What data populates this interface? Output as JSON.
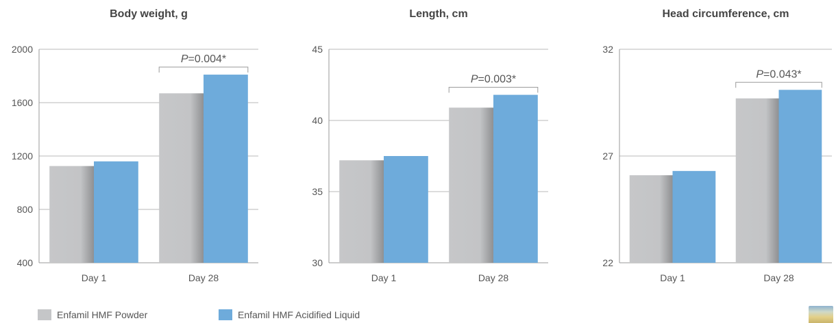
{
  "colors": {
    "powder": "#c5c6c8",
    "powder_shadow": "#8f9092",
    "liquid": "#6eabdb",
    "axis": "#9a9a9a",
    "grid": "#b8b8b8",
    "text": "#555555",
    "title": "#444444"
  },
  "legend": [
    {
      "label": "Enfamil HMF Powder",
      "color": "#c5c6c8"
    },
    {
      "label": "Enfamil HMF Acidified Liquid",
      "color": "#6eabdb"
    }
  ],
  "chart_data": [
    {
      "type": "bar",
      "title": "Body weight, g",
      "categories": [
        "Day 1",
        "Day 28"
      ],
      "ylim": [
        400,
        2000
      ],
      "yticks": [
        400,
        800,
        1200,
        1600,
        2000
      ],
      "grid": true,
      "series": [
        {
          "name": "Enfamil HMF Powder",
          "values": [
            1125,
            1670
          ]
        },
        {
          "name": "Enfamil HMF Acidified Liquid",
          "values": [
            1160,
            1810
          ]
        }
      ],
      "annotation": {
        "category": "Day 28",
        "p_label": "P",
        "p_value": "=0.004*"
      }
    },
    {
      "type": "bar",
      "title": "Length, cm",
      "categories": [
        "Day 1",
        "Day 28"
      ],
      "ylim": [
        30,
        45
      ],
      "yticks": [
        30,
        35,
        40,
        45
      ],
      "grid": true,
      "series": [
        {
          "name": "Enfamil HMF Powder",
          "values": [
            37.2,
            40.9
          ]
        },
        {
          "name": "Enfamil HMF Acidified Liquid",
          "values": [
            37.5,
            41.8
          ]
        }
      ],
      "annotation": {
        "category": "Day 28",
        "p_label": "P",
        "p_value": "=0.003*"
      }
    },
    {
      "type": "bar",
      "title": "Head circumference, cm",
      "categories": [
        "Day 1",
        "Day 28"
      ],
      "ylim": [
        22,
        32
      ],
      "yticks": [
        22,
        27,
        32
      ],
      "grid": true,
      "series": [
        {
          "name": "Enfamil HMF Powder",
          "values": [
            26.1,
            29.7
          ]
        },
        {
          "name": "Enfamil HMF Acidified Liquid",
          "values": [
            26.3,
            30.1
          ]
        }
      ],
      "annotation": {
        "category": "Day 28",
        "p_label": "P",
        "p_value": "=0.043*"
      }
    }
  ]
}
